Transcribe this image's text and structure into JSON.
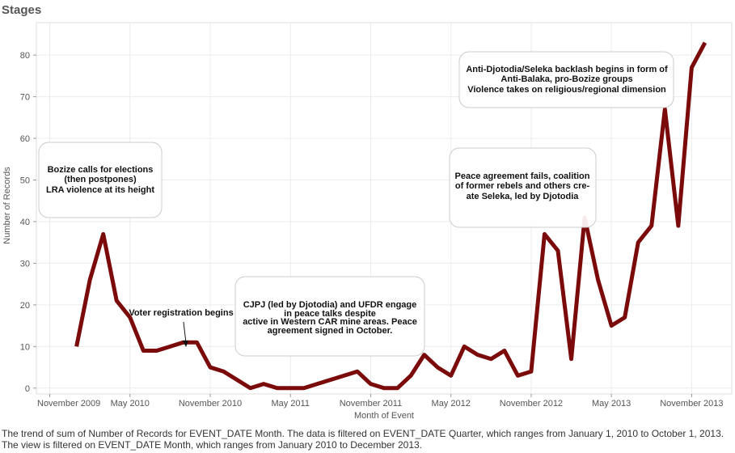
{
  "chart_data": {
    "type": "line",
    "title": "Stages",
    "y_label": "Number of Records",
    "x_label": "Month of Event",
    "caption": [
      "The trend of sum of Number of Records for EVENT_DATE Month. The data is filtered on EVENT_DATE Quarter, which ranges from January 1, 2010 to October 1, 2013.",
      "The view is filtered on EVENT_DATE Month, which ranges from January 2010 to December 2013."
    ],
    "x": [
      "2010-01",
      "2010-02",
      "2010-03",
      "2010-04",
      "2010-05",
      "2010-06",
      "2010-07",
      "2010-08",
      "2010-09",
      "2010-10",
      "2010-11",
      "2010-12",
      "2011-01",
      "2011-02",
      "2011-03",
      "2011-04",
      "2011-05",
      "2011-06",
      "2011-07",
      "2011-08",
      "2011-09",
      "2011-10",
      "2011-11",
      "2011-12",
      "2012-01",
      "2012-02",
      "2012-03",
      "2012-04",
      "2012-05",
      "2012-06",
      "2012-07",
      "2012-08",
      "2012-09",
      "2012-10",
      "2012-11",
      "2012-12",
      "2013-01",
      "2013-02",
      "2013-03",
      "2013-04",
      "2013-05",
      "2013-06",
      "2013-07",
      "2013-08",
      "2013-09",
      "2013-10",
      "2013-11",
      "2013-12"
    ],
    "series": [
      {
        "name": "Number of Records",
        "color": "#7b0a0a",
        "values": [
          10,
          26,
          37,
          21,
          17,
          9,
          9,
          10,
          11,
          11,
          5,
          4,
          2,
          0,
          1,
          0,
          0,
          0,
          1,
          2,
          3,
          4,
          1,
          0,
          0,
          3,
          8,
          5,
          3,
          10,
          8,
          7,
          9,
          3,
          4,
          37,
          33,
          7,
          41,
          26,
          15,
          17,
          35,
          39,
          67,
          39,
          77,
          83
        ]
      }
    ],
    "xlim": [
      "2009-10",
      "2014-02"
    ],
    "xticks": [
      {
        "value": "2009-11",
        "label": "November 2009"
      },
      {
        "value": "2010-05",
        "label": "May 2010"
      },
      {
        "value": "2010-11",
        "label": "November 2010"
      },
      {
        "value": "2011-05",
        "label": "May 2011"
      },
      {
        "value": "2011-11",
        "label": "November 2011"
      },
      {
        "value": "2012-05",
        "label": "May 2012"
      },
      {
        "value": "2012-11",
        "label": "November 2012"
      },
      {
        "value": "2013-05",
        "label": "May 2013"
      },
      {
        "value": "2013-11",
        "label": "November 2013"
      }
    ],
    "ylim": [
      -1.4,
      87.8
    ],
    "yticks": [
      0,
      10,
      20,
      30,
      40,
      50,
      60,
      70,
      80
    ],
    "grid": true,
    "annotations": [
      {
        "lines": [
          "Bozize calls for elections",
          "(then postpones)",
          "LRA violence at its height"
        ]
      },
      {
        "lines": [
          "Voter registration begins"
        ]
      },
      {
        "lines": [
          "CJPJ (led by Djotodia) and UFDR engage",
          "in peace talks despite",
          "active in Western CAR mine areas. Peace",
          "agreement signed in October."
        ]
      },
      {
        "lines": [
          "Peace agreement fails, coalition",
          "of former rebels and others cre-",
          "ate Seleka, led by Djotodia"
        ]
      },
      {
        "lines": [
          "Anti-Djotodia/Seleka backlash begins in form of",
          "Anti-Balaka, pro-Bozize groups",
          "Violence takes on religious/regional dimension"
        ]
      }
    ]
  }
}
